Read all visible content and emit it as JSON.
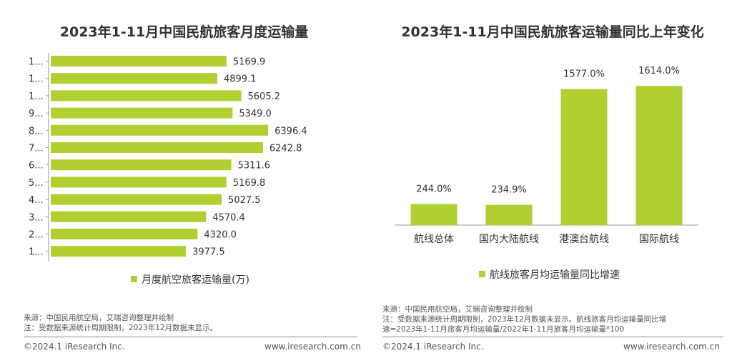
{
  "colors": {
    "bar": "#b0cf31",
    "text": "#333333"
  },
  "left": {
    "title": "2023年1-11月中国民航旅客月度运输量",
    "legend": "月度航空旅客运输量(万)",
    "notes": [
      "来源：中国民用航空局，艾瑞咨询整理并绘制",
      "注：受数据来源统计周期限制，2023年12月数据未显示。"
    ],
    "footer_left": "©2024.1 iResearch Inc.",
    "footer_right": "www.iresearch.com.cn"
  },
  "right": {
    "title": "2023年1-11月中国民航旅客运输量同比上年变化",
    "legend": "航线旅客月均运输量同比增速",
    "notes": [
      "来源：中国民用航空局，艾瑞咨询整理并绘制",
      "注：受数据来源统计周期限制，2023年12月数据未显示。航线旅客月均运输量同比增",
      "速=2023年1-11月旅客月均运输量/2022年1-11月旅客月均运输量*100"
    ],
    "footer_left": "©2024.1 iResearch Inc.",
    "footer_right": "www.iresearch.com.cn"
  },
  "chart_data": [
    {
      "type": "bar",
      "orientation": "horizontal",
      "title": "2023年1-11月中国民航旅客月度运输量",
      "categories": [
        "1...",
        "1...",
        "1...",
        "9...",
        "8...",
        "7...",
        "6...",
        "5...",
        "4...",
        "3...",
        "2...",
        "1..."
      ],
      "series": [
        {
          "name": "月度航空旅客运输量(万)",
          "values": [
            5169.9,
            4899.1,
            5605.2,
            5349.0,
            6396.4,
            6242.8,
            5311.6,
            5169.8,
            5027.5,
            4570.4,
            4320.0,
            3977.5
          ]
        }
      ],
      "value_labels": [
        "5169.9",
        "4899.1",
        "5605.2",
        "5349.0",
        "6396.4",
        "6242.8",
        "5311.6",
        "5169.8",
        "5027.5",
        "4570.4",
        "4320.0",
        "3977.5"
      ],
      "xlim": [
        0,
        10000
      ],
      "legend": "bottom"
    },
    {
      "type": "bar",
      "orientation": "vertical",
      "title": "2023年1-11月中国民航旅客运输量同比上年变化",
      "categories": [
        "航线总体",
        "国内大陆航线",
        "港澳台航线",
        "国际航线"
      ],
      "series": [
        {
          "name": "航线旅客月均运输量同比增速",
          "values": [
            244.0,
            234.9,
            1577.0,
            1614.0
          ]
        }
      ],
      "value_labels": [
        "244.0%",
        "234.9%",
        "1577.0%",
        "1614.0%"
      ],
      "ylim": [
        0,
        1700
      ],
      "legend": "bottom"
    }
  ]
}
